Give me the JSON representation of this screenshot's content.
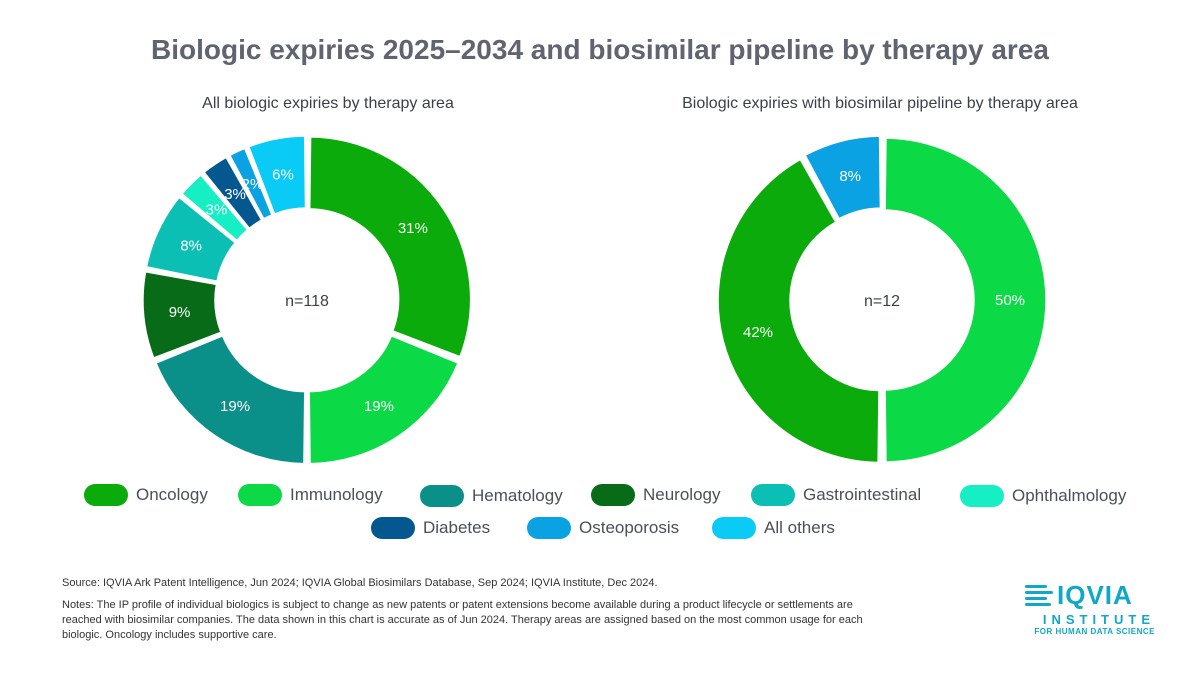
{
  "title": "Biologic expiries 2025–2034 and biosimilar pipeline by therapy area",
  "chart_data": [
    {
      "type": "pie",
      "variant": "donut",
      "title": "All biologic expiries by therapy area",
      "center_label": "n=118",
      "categories": [
        "Oncology",
        "Immunology",
        "Hematology",
        "Neurology",
        "Gastrointestinal",
        "Ophthalmology",
        "Diabetes",
        "Osteoporosis",
        "All others"
      ],
      "values": [
        31,
        19,
        19,
        9,
        8,
        3,
        3,
        2,
        6
      ],
      "labels": [
        "31%",
        "19%",
        "19%",
        "9%",
        "8%",
        "3%",
        "3%",
        "2%",
        "6%"
      ]
    },
    {
      "type": "pie",
      "variant": "donut",
      "title": "Biologic expiries with biosimilar pipeline by therapy area",
      "center_label": "n=12",
      "categories": [
        "Immunology",
        "Oncology",
        "Osteoporosis"
      ],
      "values": [
        50,
        42,
        8
      ],
      "labels": [
        "50%",
        "42%",
        "8%"
      ]
    }
  ],
  "colors": {
    "Oncology": "#0aab0a",
    "Immunology": "#0bd946",
    "Hematology": "#0a9089",
    "Neurology": "#076b17",
    "Gastrointestinal": "#0bbfb5",
    "Ophthalmology": "#16eec3",
    "Diabetes": "#05588f",
    "Osteoporosis": "#0aa2e2",
    "All others": "#09cbf6"
  },
  "legend": [
    {
      "label": "Oncology",
      "color": "#0aab0a"
    },
    {
      "label": "Immunology",
      "color": "#0bd946"
    },
    {
      "label": "Hematology",
      "color": "#0a9089"
    },
    {
      "label": "Neurology",
      "color": "#076b17"
    },
    {
      "label": "Gastrointestinal",
      "color": "#0bbfb5"
    },
    {
      "label": "Ophthalmology",
      "color": "#16eec3"
    },
    {
      "label": "Diabetes",
      "color": "#05588f"
    },
    {
      "label": "Osteoporosis",
      "color": "#0aa2e2"
    },
    {
      "label": "All others",
      "color": "#09cbf6"
    }
  ],
  "source": "Source: IQVIA Ark Patent Intelligence, Jun 2024; IQVIA Global Biosimilars Database, Sep 2024; IQVIA Institute, Dec 2024.",
  "notes": "Notes: The IP profile of individual biologics is subject to change as new patents or patent extensions become available during a product lifecycle or settlements are reached with biosimilar companies. The data shown in this chart is accurate as of Jun 2024. Therapy areas are assigned based on the most common usage for each biologic. Oncology includes supportive care.",
  "logo": {
    "word": "IQVIA",
    "institute": "INSTITUTE",
    "tagline": "FOR HUMAN DATA SCIENCE"
  }
}
